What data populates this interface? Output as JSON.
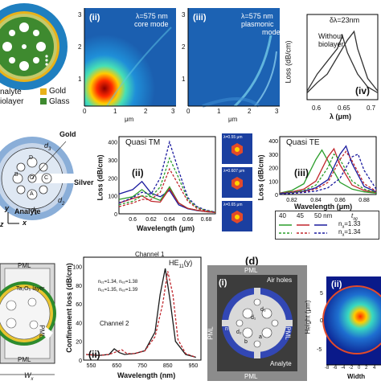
{
  "row1": {
    "a_fiber": {
      "legend": [
        "nalyte",
        "iolayer"
      ],
      "legend_right": [
        "Gold",
        "Glass"
      ],
      "colors": {
        "gold": "#e8b21a",
        "glass": "#3e8a2f",
        "analyte": "#1f7fc0",
        "biolayer": "#c4c96a"
      }
    },
    "ii": {
      "tag": "(ii)",
      "note_l1": "λ=575 nm",
      "note_l2": "core mode",
      "xticks": [
        "0",
        "1",
        "2",
        "3"
      ],
      "yticks": [
        "3",
        "2",
        "1",
        "0"
      ],
      "xlabel": "μm",
      "ylabel": "μm"
    },
    "iii": {
      "tag": "(iii)",
      "note_l1": "λ=575 nm",
      "note_l2": "plasmonic",
      "note_l3": "mode",
      "xticks": [
        "0",
        "1",
        "2",
        "3"
      ],
      "yticks": [
        "3",
        "2",
        "1",
        "0"
      ],
      "xlabel": "μm",
      "ylabel": "μm"
    },
    "iv": {
      "tag": "(iv)",
      "annotation": "δλ=23nm",
      "without_l1": "Without",
      "without_l2": "biolayer",
      "ylabel": "Loss (dB/cm)",
      "xlabel": "λ (μm)",
      "xticks": [
        "0.6",
        "0.65",
        "0.7"
      ]
    }
  },
  "row2": {
    "fiber": {
      "labels": {
        "gold": "Gold",
        "silver": "Silver",
        "analyte": "Analyte",
        "d3": "d",
        "d3sub": "3",
        "d2": "d",
        "d2sub": "2",
        "d1": "d",
        "d1sub": "1",
        "ax_y": "y",
        "ax_x": "x",
        "ax_z": "z"
      },
      "hole_letters": [
        "D",
        "B",
        "O",
        "C",
        "A"
      ]
    },
    "tm": {
      "tag": "(ii)",
      "title": "Quasi TM",
      "ylabel": "Loss (dB/cm)",
      "xlabel": "Wavelength (μm)",
      "yticks": [
        "400",
        "300",
        "200",
        "100",
        "0"
      ],
      "xticks": [
        "0.6",
        "0.62",
        "0.64",
        "0.66",
        "0.68"
      ],
      "insets": [
        "λ=0.55 μm",
        "λ=0.607 μm",
        "λ=0.65 μm"
      ]
    },
    "te": {
      "tag": "(iii)",
      "title": "Quasi TE",
      "ylabel": "Loss (dB/cm)",
      "xlabel": "Wavelength (μm)",
      "yticks": [
        "400",
        "300",
        "200",
        "100",
        "0"
      ],
      "xticks": [
        "0.82",
        "0.84",
        "0.86",
        "0.88"
      ],
      "legend_values": [
        "40",
        "45",
        "50 nm"
      ],
      "legend_tag": "t",
      "legend_tag_sub": "ag",
      "legend_na1": "n",
      "legend_na1_sub": "a",
      "legend_na1_val": "=1.33",
      "legend_na2": "n",
      "legend_na2_sub": "a",
      "legend_na2_val": "=1.34"
    }
  },
  "row3": {
    "left": {
      "pml": "PML",
      "ta2o5": "Ta₂O₅ layer",
      "wx": "W",
      "wx_sub": "x"
    },
    "conf": {
      "tag": "(ii)",
      "title": "HE",
      "title_sub": "11",
      "title_tail": "(y)",
      "ylabel": "Confinement loss (dB/cm)",
      "xlabel": "Wavelength",
      "xlabel_unit": "nm)",
      "xticks": [
        "550",
        "650",
        "750",
        "850",
        "950"
      ],
      "yticks": [
        "100",
        "80",
        "60",
        "40",
        "20",
        "0"
      ],
      "channel1": "Channel 1",
      "channel2": "Channel 2",
      "leg1": "nₑ₁=1.34, nₑ₂=1.38",
      "leg2": "nₑ₁=1.35, nₑ₂=1.39"
    },
    "d": {
      "label": "(d)",
      "tag": "(i)",
      "pml": "PML",
      "airholes": "Air holes",
      "analyte": "Analyte",
      "d1": "d₁",
      "d2": "d₂",
      "d3": "d₃",
      "n": "n",
      "a": "a",
      "b": "b"
    },
    "field": {
      "tag": "(ii)",
      "ylabel": "Height (μm)",
      "xlabel": "Width",
      "yticks": [
        "5",
        "0",
        "-5"
      ],
      "xticks": [
        "-8",
        "-6",
        "-4",
        "-2",
        "0",
        "2",
        "4"
      ]
    }
  },
  "chart_data": [
    {
      "type": "line",
      "title": "Quasi TM",
      "xlabel": "Wavelength (μm)",
      "ylabel": "Loss (dB/cm)",
      "xlim": [
        0.585,
        0.69
      ],
      "ylim": [
        0,
        430
      ],
      "series": [
        {
          "color": "#1a1a9e",
          "style": "solid",
          "x": [
            0.585,
            0.6,
            0.61,
            0.62,
            0.63,
            0.64,
            0.65,
            0.66,
            0.67,
            0.68,
            0.69
          ],
          "y": [
            110,
            135,
            180,
            115,
            95,
            130,
            50,
            28,
            18,
            12,
            8
          ]
        },
        {
          "color": "#2a9d2a",
          "style": "solid",
          "x": [
            0.585,
            0.6,
            0.61,
            0.62,
            0.63,
            0.64,
            0.65,
            0.66,
            0.67,
            0.68,
            0.69
          ],
          "y": [
            80,
            95,
            135,
            95,
            75,
            150,
            60,
            30,
            20,
            12,
            8
          ]
        },
        {
          "color": "#c0262c",
          "style": "solid",
          "x": [
            0.585,
            0.6,
            0.61,
            0.62,
            0.63,
            0.64,
            0.65,
            0.66,
            0.67,
            0.68,
            0.69
          ],
          "y": [
            60,
            85,
            100,
            70,
            65,
            140,
            60,
            30,
            20,
            12,
            8
          ]
        },
        {
          "color": "#1a1a9e",
          "style": "dashed",
          "x": [
            0.585,
            0.6,
            0.61,
            0.62,
            0.63,
            0.64,
            0.65,
            0.66,
            0.67,
            0.68,
            0.69
          ],
          "y": [
            60,
            90,
            120,
            110,
            200,
            400,
            240,
            90,
            40,
            20,
            10
          ]
        },
        {
          "color": "#2a9d2a",
          "style": "dashed",
          "x": [
            0.585,
            0.6,
            0.61,
            0.62,
            0.63,
            0.64,
            0.65,
            0.66,
            0.67,
            0.68,
            0.69
          ],
          "y": [
            50,
            70,
            100,
            95,
            150,
            310,
            200,
            80,
            35,
            18,
            10
          ]
        },
        {
          "color": "#c0262c",
          "style": "dashed",
          "x": [
            0.585,
            0.6,
            0.61,
            0.62,
            0.63,
            0.64,
            0.65,
            0.66,
            0.67,
            0.68,
            0.69
          ],
          "y": [
            40,
            60,
            80,
            80,
            120,
            250,
            160,
            70,
            30,
            15,
            8
          ]
        }
      ]
    },
    {
      "type": "line",
      "title": "Quasi TE",
      "xlabel": "Wavelength (μm)",
      "ylabel": "Loss (dB/cm)",
      "xlim": [
        0.81,
        0.89
      ],
      "ylim": [
        0,
        430
      ],
      "series": [
        {
          "color": "#2a9d2a",
          "style": "solid",
          "x": [
            0.81,
            0.82,
            0.83,
            0.84,
            0.845,
            0.85,
            0.86,
            0.87,
            0.88,
            0.89
          ],
          "y": [
            10,
            30,
            80,
            260,
            330,
            250,
            90,
            40,
            20,
            10
          ]
        },
        {
          "color": "#c0262c",
          "style": "solid",
          "x": [
            0.81,
            0.82,
            0.83,
            0.84,
            0.85,
            0.855,
            0.86,
            0.87,
            0.88,
            0.89
          ],
          "y": [
            10,
            20,
            40,
            100,
            280,
            340,
            220,
            70,
            30,
            15
          ]
        },
        {
          "color": "#1a1a9e",
          "style": "solid",
          "x": [
            0.81,
            0.82,
            0.83,
            0.84,
            0.85,
            0.86,
            0.865,
            0.87,
            0.88,
            0.89
          ],
          "y": [
            8,
            15,
            25,
            50,
            110,
            300,
            360,
            230,
            60,
            20
          ]
        },
        {
          "color": "#2a9d2a",
          "style": "dashed",
          "x": [
            0.81,
            0.82,
            0.83,
            0.84,
            0.85,
            0.855,
            0.86,
            0.87,
            0.88,
            0.89
          ],
          "y": [
            8,
            15,
            30,
            70,
            200,
            300,
            260,
            100,
            40,
            15
          ]
        },
        {
          "color": "#c0262c",
          "style": "dashed",
          "x": [
            0.81,
            0.82,
            0.83,
            0.84,
            0.85,
            0.86,
            0.865,
            0.87,
            0.88,
            0.89
          ],
          "y": [
            6,
            10,
            20,
            40,
            90,
            260,
            320,
            250,
            80,
            25
          ]
        },
        {
          "color": "#1a1a9e",
          "style": "dashed",
          "x": [
            0.81,
            0.82,
            0.83,
            0.84,
            0.85,
            0.86,
            0.87,
            0.875,
            0.88,
            0.89
          ],
          "y": [
            5,
            8,
            15,
            25,
            50,
            120,
            280,
            300,
            180,
            40
          ]
        }
      ]
    },
    {
      "type": "line",
      "title": "HE11(y)",
      "xlabel": "Wavelength (nm)",
      "ylabel": "Confinement loss (dB/cm)",
      "xlim": [
        520,
        980
      ],
      "ylim": [
        0,
        110
      ],
      "series": [
        {
          "name": "nₑ₁=1.34, nₑ₂=1.38",
          "color": "#1a1a1a",
          "style": "solid",
          "x": [
            530,
            580,
            620,
            640,
            660,
            680,
            720,
            760,
            800,
            820,
            840,
            860,
            880,
            920,
            960
          ],
          "y": [
            6,
            5,
            6,
            12,
            8,
            6,
            7,
            10,
            30,
            70,
            98,
            62,
            20,
            6,
            3
          ]
        },
        {
          "name": "nₑ₁=1.35, nₑ₂=1.39",
          "color": "#c0262c",
          "style": "dashed",
          "x": [
            530,
            580,
            620,
            650,
            670,
            690,
            720,
            760,
            800,
            830,
            850,
            870,
            890,
            920,
            960
          ],
          "y": [
            6,
            5,
            6,
            9,
            11,
            7,
            7,
            10,
            25,
            60,
            95,
            70,
            22,
            7,
            3
          ]
        }
      ]
    },
    {
      "type": "line",
      "title": "",
      "xlabel": "λ (μm)",
      "ylabel": "Loss (dB/cm)",
      "xlim": [
        0.58,
        0.72
      ],
      "ylim": [
        0,
        100
      ],
      "series": [
        {
          "color": "#333333",
          "style": "solid",
          "x": [
            0.58,
            0.6,
            0.62,
            0.64,
            0.65,
            0.66,
            0.68,
            0.7,
            0.72
          ],
          "y": [
            10,
            30,
            45,
            60,
            75,
            55,
            30,
            15,
            8
          ]
        },
        {
          "color": "#333333",
          "style": "solid",
          "x": [
            0.58,
            0.6,
            0.62,
            0.64,
            0.66,
            0.673,
            0.68,
            0.7,
            0.72
          ],
          "y": [
            8,
            20,
            30,
            50,
            70,
            80,
            60,
            25,
            10
          ]
        }
      ]
    }
  ]
}
